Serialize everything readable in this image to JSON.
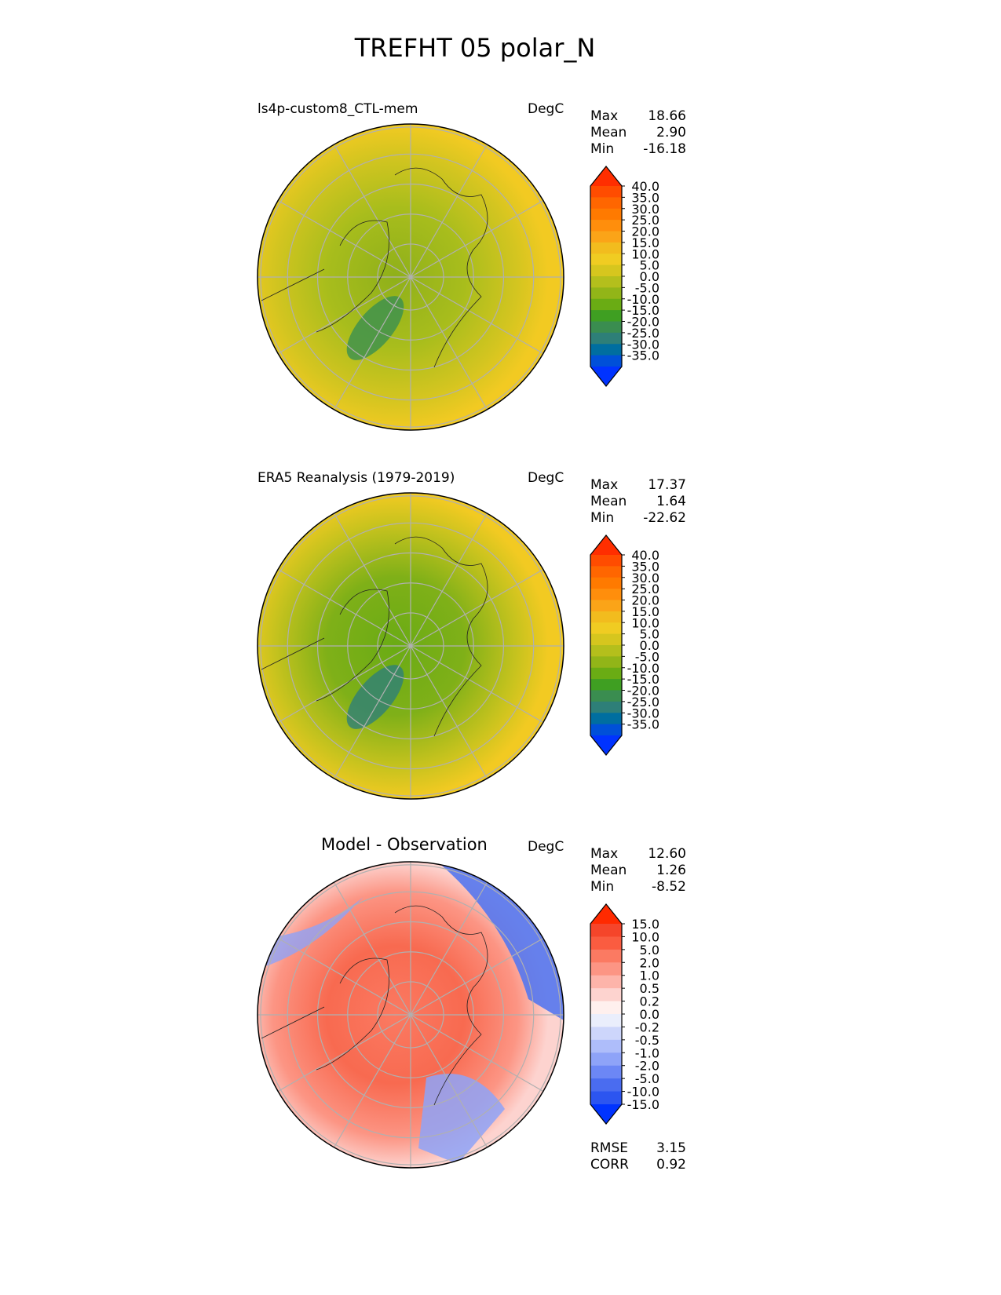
{
  "title": "TREFHT 05 polar_N",
  "panels": [
    {
      "title": "ls4p-custom8_CTL-mem",
      "units": "DegC",
      "stats": [
        {
          "label": "Max",
          "value": "18.66"
        },
        {
          "label": "Mean",
          "value": "2.90"
        },
        {
          "label": "Min",
          "value": "-16.18"
        }
      ],
      "colorbar": {
        "labels": [
          "40.0",
          "35.0",
          "30.0",
          "25.0",
          "20.0",
          "15.0",
          "10.0",
          "5.0",
          "0.0",
          "-5.0",
          "-10.0",
          "-15.0",
          "-20.0",
          "-25.0",
          "-30.0",
          "-35.0"
        ],
        "colors": [
          "#ff2e00",
          "#ff4c00",
          "#ff6600",
          "#ff7a00",
          "#ff8e0c",
          "#fba418",
          "#f2bc1e",
          "#f0cc22",
          "#d6c61e",
          "#b4bf1c",
          "#92b518",
          "#6aac14",
          "#3f9f22",
          "#3a8d50",
          "#2e7f78",
          "#006ea0",
          "#0050d8",
          "#0033ff"
        ]
      },
      "map": {
        "center": "#8fb01a",
        "mid": "#a8bd1c",
        "outer": "#d4c520",
        "edge": "#f2ca22"
      }
    },
    {
      "title": "ERA5 Reanalysis (1979-2019)",
      "units": "DegC",
      "stats": [
        {
          "label": "Max",
          "value": "17.37"
        },
        {
          "label": "Mean",
          "value": "1.64"
        },
        {
          "label": "Min",
          "value": "-22.62"
        }
      ],
      "colorbar": {
        "labels": [
          "40.0",
          "35.0",
          "30.0",
          "25.0",
          "20.0",
          "15.0",
          "10.0",
          "5.0",
          "0.0",
          "-5.0",
          "-10.0",
          "-15.0",
          "-20.0",
          "-25.0",
          "-30.0",
          "-35.0"
        ],
        "colors": [
          "#ff2e00",
          "#ff4c00",
          "#ff6600",
          "#ff7a00",
          "#ff8e0c",
          "#fba418",
          "#f2bc1e",
          "#f0cc22",
          "#d6c61e",
          "#b4bf1c",
          "#92b518",
          "#6aac14",
          "#3f9f22",
          "#3a8d50",
          "#2e7f78",
          "#006ea0",
          "#0050d8",
          "#0033ff"
        ]
      },
      "map": {
        "center": "#6aab14",
        "mid": "#7fb018",
        "outer": "#c8c31e",
        "edge": "#f2ca22"
      }
    },
    {
      "title": "Model - Observation",
      "units": "DegC",
      "stats": [
        {
          "label": "Max",
          "value": "12.60"
        },
        {
          "label": "Mean",
          "value": "1.26"
        },
        {
          "label": "Min",
          "value": "-8.52"
        }
      ],
      "colorbar": {
        "labels": [
          "15.0",
          "10.0",
          "5.0",
          "2.0",
          "1.0",
          "0.5",
          "0.2",
          "0.0",
          "-0.2",
          "-0.5",
          "-1.0",
          "-2.0",
          "-5.0",
          "-10.0",
          "-15.0"
        ],
        "colors": [
          "#ff2a00",
          "#f5452a",
          "#fa5c40",
          "#fb7a62",
          "#fc9584",
          "#fdb4aa",
          "#fdd3cf",
          "#fff0ee",
          "#eaeefc",
          "#cdd6fb",
          "#aebdfa",
          "#8ea3f8",
          "#6c87f5",
          "#4a6cf0",
          "#2c55f0",
          "#0033ff"
        ]
      },
      "map": {
        "center": "#fb7a62",
        "mid": "#f86a50",
        "outer": "#fc9584",
        "edge": "#fdd3cf"
      },
      "metrics": [
        {
          "label": "RMSE",
          "value": "3.15"
        },
        {
          "label": "CORR",
          "value": "0.92"
        }
      ]
    }
  ]
}
